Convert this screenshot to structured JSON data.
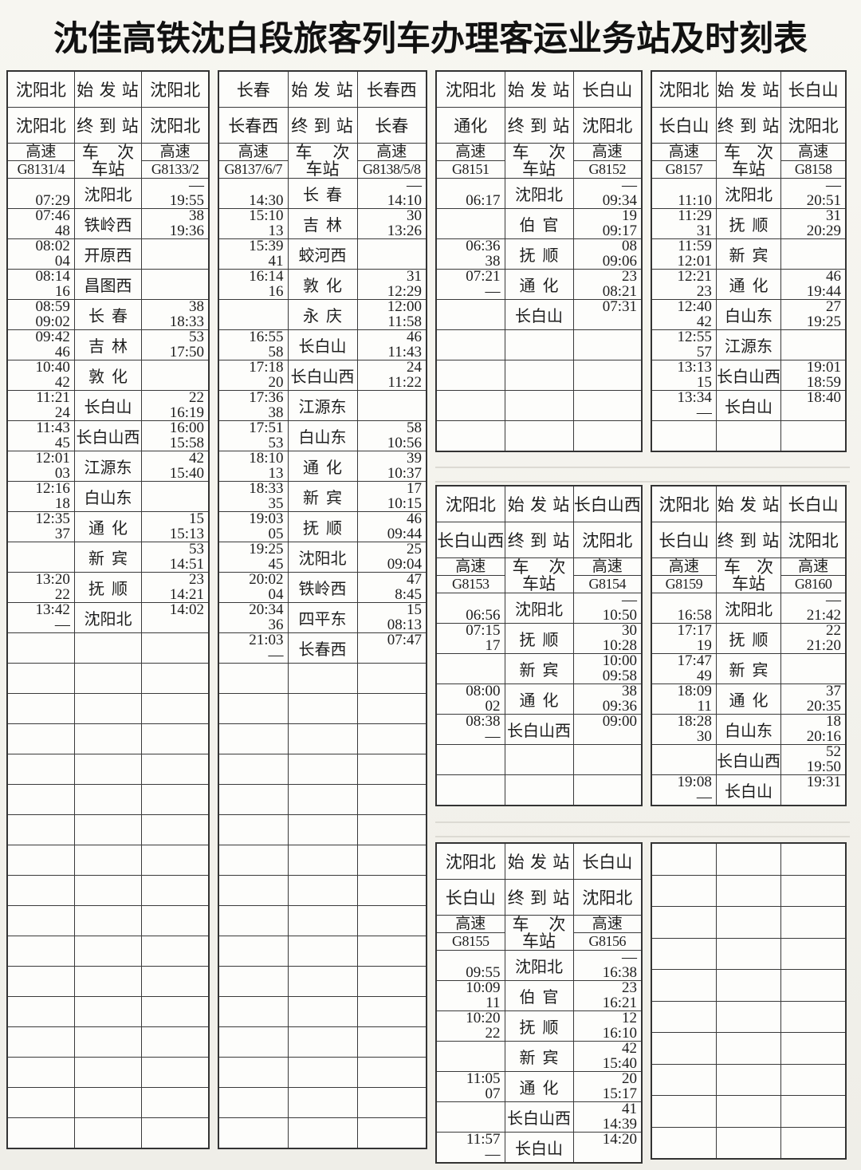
{
  "title": "沈佳高铁沈白段旅客列车办理客运业务站及时刻表",
  "colors": {
    "border": "#3a3a3a",
    "text": "#1e1e1e",
    "background": "#f4f3ee"
  },
  "labels": {
    "start": "始 发 站",
    "end": "终 到 站",
    "train": "车 次",
    "station": "车站",
    "speed": "高速"
  },
  "tables": [
    {
      "id": "t1",
      "name": "timetable-g8131-4-g8133-2",
      "header": true,
      "origin_left": "沈阳北",
      "origin_right": "沈阳北",
      "dest_left": "沈阳北",
      "dest_right": "沈阳北",
      "train_left": "G8131/4",
      "train_right": "G8133/2",
      "empty_rows": 17,
      "rows": [
        {
          "l1": "",
          "l2": "07:29",
          "st": "沈阳北",
          "r1": "—",
          "r2": "19:55"
        },
        {
          "l1": "07:46",
          "l2": "48",
          "st": "铁岭西",
          "r1": "38",
          "r2": "19:36"
        },
        {
          "l1": "08:02",
          "l2": "04",
          "st": "开原西",
          "r1": "",
          "r2": ""
        },
        {
          "l1": "08:14",
          "l2": "16",
          "st": "昌图西",
          "r1": "",
          "r2": ""
        },
        {
          "l1": "08:59",
          "l2": "09:02",
          "st": "长春",
          "r1": "38",
          "r2": "18:33"
        },
        {
          "l1": "09:42",
          "l2": "46",
          "st": "吉林",
          "r1": "53",
          "r2": "17:50"
        },
        {
          "l1": "10:40",
          "l2": "42",
          "st": "敦化",
          "r1": "",
          "r2": ""
        },
        {
          "l1": "11:21",
          "l2": "24",
          "st": "长白山",
          "r1": "22",
          "r2": "16:19"
        },
        {
          "l1": "11:43",
          "l2": "45",
          "st": "长白山西",
          "r1": "16:00",
          "r2": "15:58"
        },
        {
          "l1": "12:01",
          "l2": "03",
          "st": "江源东",
          "r1": "42",
          "r2": "15:40"
        },
        {
          "l1": "12:16",
          "l2": "18",
          "st": "白山东",
          "r1": "",
          "r2": ""
        },
        {
          "l1": "12:35",
          "l2": "37",
          "st": "通化",
          "r1": "15",
          "r2": "15:13"
        },
        {
          "l1": "",
          "l2": "",
          "st": "新宾",
          "r1": "53",
          "r2": "14:51"
        },
        {
          "l1": "13:20",
          "l2": "22",
          "st": "抚顺",
          "r1": "23",
          "r2": "14:21"
        },
        {
          "l1": "13:42",
          "l2": "—",
          "st": "沈阳北",
          "r1": "14:02",
          "r2": ""
        }
      ]
    },
    {
      "id": "t2",
      "name": "timetable-g8137-6-7-g8138-5-8",
      "header": true,
      "origin_left": "长春",
      "origin_right": "长春西",
      "dest_left": "长春西",
      "dest_right": "长春",
      "train_left": "G8137/6/7",
      "train_right": "G8138/5/8",
      "empty_rows": 16,
      "rows": [
        {
          "l1": "",
          "l2": "14:30",
          "st": "长春",
          "r1": "—",
          "r2": "14:10"
        },
        {
          "l1": "15:10",
          "l2": "13",
          "st": "吉林",
          "r1": "30",
          "r2": "13:26"
        },
        {
          "l1": "15:39",
          "l2": "41",
          "st": "蛟河西",
          "r1": "",
          "r2": ""
        },
        {
          "l1": "16:14",
          "l2": "16",
          "st": "敦化",
          "r1": "31",
          "r2": "12:29"
        },
        {
          "l1": "",
          "l2": "",
          "st": "永庆",
          "r1": "12:00",
          "r2": "11:58"
        },
        {
          "l1": "16:55",
          "l2": "58",
          "st": "长白山",
          "r1": "46",
          "r2": "11:43"
        },
        {
          "l1": "17:18",
          "l2": "20",
          "st": "长白山西",
          "r1": "24",
          "r2": "11:22"
        },
        {
          "l1": "17:36",
          "l2": "38",
          "st": "江源东",
          "r1": "",
          "r2": ""
        },
        {
          "l1": "17:51",
          "l2": "53",
          "st": "白山东",
          "r1": "58",
          "r2": "10:56"
        },
        {
          "l1": "18:10",
          "l2": "13",
          "st": "通化",
          "r1": "39",
          "r2": "10:37"
        },
        {
          "l1": "18:33",
          "l2": "35",
          "st": "新宾",
          "r1": "17",
          "r2": "10:15"
        },
        {
          "l1": "19:03",
          "l2": "05",
          "st": "抚顺",
          "r1": "46",
          "r2": "09:44"
        },
        {
          "l1": "19:25",
          "l2": "45",
          "st": "沈阳北",
          "r1": "25",
          "r2": "09:04"
        },
        {
          "l1": "20:02",
          "l2": "04",
          "st": "铁岭西",
          "r1": "47",
          "r2": "8:45"
        },
        {
          "l1": "20:34",
          "l2": "36",
          "st": "四平东",
          "r1": "15",
          "r2": "08:13"
        },
        {
          "l1": "21:03",
          "l2": "—",
          "st": "长春西",
          "r1": "07:47",
          "r2": ""
        }
      ]
    },
    {
      "id": "t3",
      "name": "timetable-g8151-g8152",
      "header": true,
      "origin_left": "沈阳北",
      "origin_right": "长白山",
      "dest_left": "通化",
      "dest_right": "沈阳北",
      "train_left": "G8151",
      "train_right": "G8152",
      "empty_rows": 4,
      "rows": [
        {
          "l1": "",
          "l2": "06:17",
          "st": "沈阳北",
          "r1": "—",
          "r2": "09:34"
        },
        {
          "l1": "",
          "l2": "",
          "st": "伯官",
          "r1": "19",
          "r2": "09:17"
        },
        {
          "l1": "06:36",
          "l2": "38",
          "st": "抚顺",
          "r1": "08",
          "r2": "09:06"
        },
        {
          "l1": "07:21",
          "l2": "—",
          "st": "通化",
          "r1": "23",
          "r2": "08:21"
        },
        {
          "l1": "",
          "l2": "",
          "st": "长白山",
          "r1": "07:31",
          "r2": ""
        }
      ]
    },
    {
      "id": "t4",
      "name": "timetable-g8157-g8158",
      "header": true,
      "origin_left": "沈阳北",
      "origin_right": "长白山",
      "dest_left": "长白山",
      "dest_right": "沈阳北",
      "train_left": "G8157",
      "train_right": "G8158",
      "empty_rows": 1,
      "rows": [
        {
          "l1": "",
          "l2": "11:10",
          "st": "沈阳北",
          "r1": "—",
          "r2": "20:51"
        },
        {
          "l1": "11:29",
          "l2": "31",
          "st": "抚顺",
          "r1": "31",
          "r2": "20:29"
        },
        {
          "l1": "11:59",
          "l2": "12:01",
          "st": "新宾",
          "r1": "",
          "r2": ""
        },
        {
          "l1": "12:21",
          "l2": "23",
          "st": "通化",
          "r1": "46",
          "r2": "19:44"
        },
        {
          "l1": "12:40",
          "l2": "42",
          "st": "白山东",
          "r1": "27",
          "r2": "19:25"
        },
        {
          "l1": "12:55",
          "l2": "57",
          "st": "江源东",
          "r1": "",
          "r2": ""
        },
        {
          "l1": "13:13",
          "l2": "15",
          "st": "长白山西",
          "r1": "19:01",
          "r2": "18:59"
        },
        {
          "l1": "13:34",
          "l2": "—",
          "st": "长白山",
          "r1": "18:40",
          "r2": ""
        }
      ]
    },
    {
      "id": "t5",
      "name": "timetable-g8153-g8154",
      "header": true,
      "origin_left": "沈阳北",
      "origin_right": "长白山西",
      "dest_left": "长白山西",
      "dest_right": "沈阳北",
      "train_left": "G8153",
      "train_right": "G8154",
      "empty_rows": 2,
      "rows": [
        {
          "l1": "",
          "l2": "06:56",
          "st": "沈阳北",
          "r1": "—",
          "r2": "10:50"
        },
        {
          "l1": "07:15",
          "l2": "17",
          "st": "抚顺",
          "r1": "30",
          "r2": "10:28"
        },
        {
          "l1": "",
          "l2": "",
          "st": "新宾",
          "r1": "10:00",
          "r2": "09:58"
        },
        {
          "l1": "08:00",
          "l2": "02",
          "st": "通化",
          "r1": "38",
          "r2": "09:36"
        },
        {
          "l1": "08:38",
          "l2": "—",
          "st": "长白山西",
          "r1": "09:00",
          "r2": ""
        }
      ]
    },
    {
      "id": "t6",
      "name": "timetable-g8159-g8160",
      "header": true,
      "origin_left": "沈阳北",
      "origin_right": "长白山",
      "dest_left": "长白山",
      "dest_right": "沈阳北",
      "train_left": "G8159",
      "train_right": "G8160",
      "empty_rows": 0,
      "rows": [
        {
          "l1": "",
          "l2": "16:58",
          "st": "沈阳北",
          "r1": "—",
          "r2": "21:42"
        },
        {
          "l1": "17:17",
          "l2": "19",
          "st": "抚顺",
          "r1": "22",
          "r2": "21:20"
        },
        {
          "l1": "17:47",
          "l2": "49",
          "st": "新宾",
          "r1": "",
          "r2": ""
        },
        {
          "l1": "18:09",
          "l2": "11",
          "st": "通化",
          "r1": "37",
          "r2": "20:35"
        },
        {
          "l1": "18:28",
          "l2": "30",
          "st": "白山东",
          "r1": "18",
          "r2": "20:16"
        },
        {
          "l1": "",
          "l2": "",
          "st": "长白山西",
          "r1": "52",
          "r2": "19:50"
        },
        {
          "l1": "19:08",
          "l2": "—",
          "st": "长白山",
          "r1": "19:31",
          "r2": ""
        }
      ]
    },
    {
      "id": "t7",
      "name": "timetable-g8155-g8156",
      "header": true,
      "origin_left": "沈阳北",
      "origin_right": "长白山",
      "dest_left": "长白山",
      "dest_right": "沈阳北",
      "train_left": "G8155",
      "train_right": "G8156",
      "empty_rows": 0,
      "rows": [
        {
          "l1": "",
          "l2": "09:55",
          "st": "沈阳北",
          "r1": "—",
          "r2": "16:38"
        },
        {
          "l1": "10:09",
          "l2": "11",
          "st": "伯官",
          "r1": "23",
          "r2": "16:21"
        },
        {
          "l1": "10:20",
          "l2": "22",
          "st": "抚顺",
          "r1": "12",
          "r2": "16:10"
        },
        {
          "l1": "",
          "l2": "",
          "st": "新宾",
          "r1": "42",
          "r2": "15:40"
        },
        {
          "l1": "11:05",
          "l2": "07",
          "st": "通化",
          "r1": "20",
          "r2": "15:17"
        },
        {
          "l1": "",
          "l2": "",
          "st": "长白山西",
          "r1": "41",
          "r2": "14:39"
        },
        {
          "l1": "11:57",
          "l2": "—",
          "st": "长白山",
          "r1": "14:20",
          "r2": ""
        }
      ]
    },
    {
      "id": "t8",
      "name": "empty-grid",
      "header": false,
      "empty_rows": 10,
      "rows": []
    }
  ]
}
